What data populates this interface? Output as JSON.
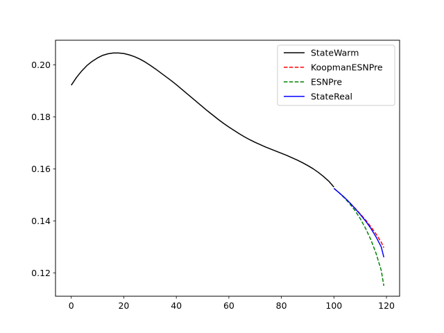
{
  "chart_data": {
    "type": "line",
    "title": "",
    "xlabel": "",
    "ylabel": "",
    "xlim": [
      -6,
      125
    ],
    "ylim": [
      0.111,
      0.2095
    ],
    "xticks": [
      0,
      20,
      40,
      60,
      80,
      100,
      120
    ],
    "xtick_labels": [
      "0",
      "20",
      "40",
      "60",
      "80",
      "100",
      "120"
    ],
    "yticks": [
      0.12,
      0.14,
      0.16,
      0.18,
      0.2
    ],
    "ytick_labels": [
      "0.12",
      "0.14",
      "0.16",
      "0.18",
      "0.20"
    ],
    "grid": false,
    "legend_position": "top-right",
    "series": [
      {
        "name": "StateWarm",
        "color": "#000000",
        "style": "solid",
        "x": [
          0,
          2,
          4,
          6,
          8,
          10,
          12,
          14,
          16,
          18,
          20,
          22,
          24,
          26,
          28,
          30,
          32,
          34,
          36,
          38,
          40,
          42,
          44,
          46,
          48,
          50,
          52,
          54,
          56,
          58,
          60,
          62,
          64,
          66,
          68,
          70,
          72,
          74,
          76,
          78,
          80,
          82,
          84,
          86,
          88,
          90,
          92,
          94,
          96,
          98,
          100
        ],
        "y": [
          0.1922,
          0.1952,
          0.1977,
          0.1998,
          0.2014,
          0.2027,
          0.2037,
          0.2043,
          0.2046,
          0.2046,
          0.2044,
          0.2039,
          0.2032,
          0.2023,
          0.2012,
          0.1999,
          0.1985,
          0.197,
          0.1955,
          0.194,
          0.1924,
          0.1907,
          0.189,
          0.1873,
          0.1856,
          0.1839,
          0.1822,
          0.1806,
          0.179,
          0.1775,
          0.1761,
          0.1748,
          0.1735,
          0.1723,
          0.1712,
          0.1702,
          0.1693,
          0.1684,
          0.1676,
          0.1668,
          0.166,
          0.1652,
          0.1643,
          0.1634,
          0.1624,
          0.1613,
          0.1601,
          0.1587,
          0.1571,
          0.1553,
          0.153
        ]
      },
      {
        "name": "KoopmanESNPre",
        "color": "#ff0000",
        "style": "dashed",
        "x": [
          100,
          102,
          104,
          106,
          108,
          110,
          112,
          114,
          116,
          118,
          119
        ],
        "y": [
          0.1525,
          0.1508,
          0.149,
          0.147,
          0.1449,
          0.1427,
          0.1404,
          0.1378,
          0.135,
          0.1318,
          0.1297
        ]
      },
      {
        "name": "ESNPre",
        "color": "#008000",
        "style": "dashed",
        "x": [
          100,
          102,
          104,
          106,
          108,
          110,
          112,
          114,
          116,
          118,
          119
        ],
        "y": [
          0.1525,
          0.1508,
          0.1488,
          0.1466,
          0.144,
          0.1409,
          0.1372,
          0.1329,
          0.1276,
          0.121,
          0.115
        ]
      },
      {
        "name": "StateReal",
        "color": "#0000ff",
        "style": "solid",
        "x": [
          100,
          102,
          104,
          106,
          108,
          110,
          112,
          114,
          116,
          118,
          119
        ],
        "y": [
          0.1525,
          0.1508,
          0.149,
          0.147,
          0.1448,
          0.1425,
          0.14,
          0.1372,
          0.1339,
          0.13,
          0.126
        ]
      }
    ]
  }
}
